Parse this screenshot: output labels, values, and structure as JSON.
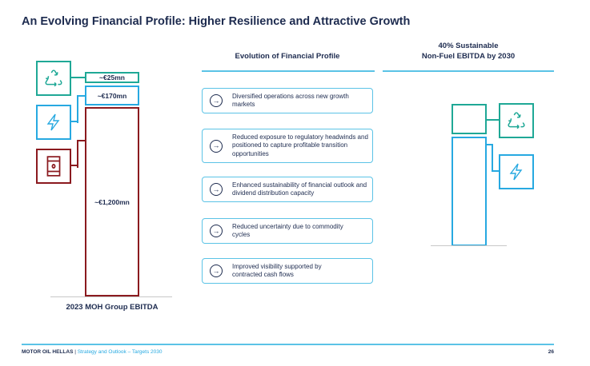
{
  "title": "An Evolving Financial Profile: Higher Resilience and Attractive Growth",
  "left_chart": {
    "label": "2023 MOH Group EBITDA",
    "segments": [
      {
        "name": "recycling",
        "value_label": "~€25mn",
        "icon": "recycle-icon",
        "color": "#1fa896"
      },
      {
        "name": "power",
        "value_label": "~€170mn",
        "icon": "lightning-icon",
        "color": "#27a9e1"
      },
      {
        "name": "fuel",
        "value_label": "~€1,200mn",
        "icon": "oil-barrel-icon",
        "color": "#8b1a1f"
      }
    ]
  },
  "middle": {
    "heading": "Evolution of Financial Profile",
    "items": [
      "Diversified operations across new growth markets",
      "Reduced exposure to regulatory headwinds and positioned to capture profitable transition opportunities",
      "Enhanced sustainability of financial outlook and dividend distribution capacity",
      "Reduced uncertainty due to commodity cycles",
      "Improved visibility supported by contracted cash flows"
    ]
  },
  "right": {
    "heading_line1": "40% Sustainable",
    "heading_line2": "Non-Fuel EBITDA by 2030"
  },
  "footer": {
    "company": "MOTOR OIL HELLAS",
    "separator": " | ",
    "subtitle": "Strategy and Outlook – Targets 2030",
    "page": "26"
  }
}
